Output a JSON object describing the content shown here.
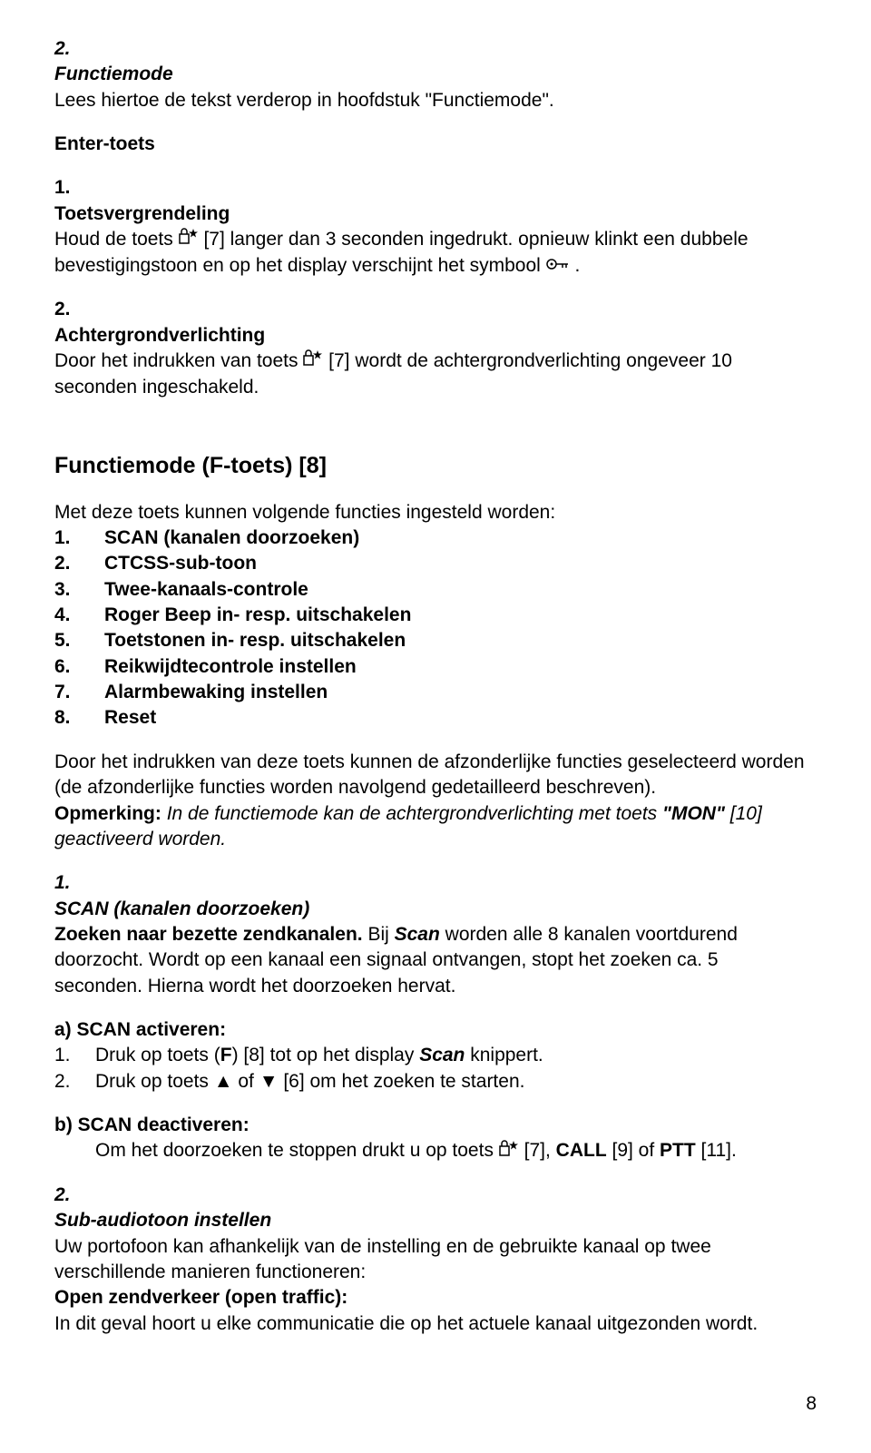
{
  "sec2": {
    "num": "2.",
    "title": "Functiemode",
    "line": "Lees hiertoe de tekst verderop in hoofdstuk \"Functiemode\"."
  },
  "enter_toets": "Enter-toets",
  "sec1a": {
    "num": "1.",
    "title": "Toetsvergrendeling",
    "line1a": "Houd de toets ",
    "line1b": " [7] langer dan 3 seconden ingedrukt. opnieuw klinkt een dubbele bevestigingstoon en op het display verschijnt het symbool ",
    "line1c": " ."
  },
  "sec2a": {
    "num": "2.",
    "title": "Achtergrondverlichting",
    "line_a": "Door het indrukken van toets ",
    "line_b": " [7] wordt de achtergrondverlichting ongeveer 10 seconden ingeschakeld."
  },
  "fmode_title": "Functiemode (F-toets) [8]",
  "fmode_intro": "Met deze toets kunnen volgende functies ingesteld worden:",
  "fmode_items": [
    {
      "n": "1.",
      "t": "SCAN (kanalen doorzoeken)"
    },
    {
      "n": "2.",
      "t": "CTCSS-sub-toon"
    },
    {
      "n": "3.",
      "t": "Twee-kanaals-controle"
    },
    {
      "n": "4.",
      "t": "Roger Beep in- resp. uitschakelen"
    },
    {
      "n": "5.",
      "t": "Toetstonen in- resp. uitschakelen"
    },
    {
      "n": "6.",
      "t": "Reikwijdtecontrole instellen"
    },
    {
      "n": "7.",
      "t": "Alarmbewaking instellen"
    },
    {
      "n": "8.",
      "t": "Reset"
    }
  ],
  "fmode_para": "Door het indrukken van deze toets kunnen de afzonderlijke functies geselecteerd worden (de afzonderlijke functies worden navolgend gedetailleerd beschreven).",
  "opm_label": "Opmerking:",
  "opm_a": " In de functiemode kan de achtergrondverlichting met toets ",
  "opm_b": "\"MON\"",
  "opm_c": " [10] geactiveerd worden.",
  "scan": {
    "num": "1.",
    "title": "SCAN (kanalen doorzoeken)",
    "l1a": "Zoeken naar bezette zendkanalen.",
    "l1b": " Bij ",
    "l1c": "Scan",
    "l1d": " worden alle 8 kanalen voortdurend doorzocht. Wordt op een kanaal een signaal ontvangen, stopt het zoeken ca. 5 seconden. Hierna wordt het doorzoeken hervat.",
    "a_label": "a)  SCAN activeren:",
    "a1_n": "1.",
    "a1_a": "Druk op toets (",
    "a1_b": "F",
    "a1_c": ") [8] tot op het display ",
    "a1_d": "Scan",
    "a1_e": " knippert.",
    "a2_n": "2.",
    "a2_t": "Druk op toets ▲ of ▼ [6] om het zoeken te starten.",
    "b_label": "b)  SCAN deactiveren:",
    "b_a": "Om het doorzoeken te stoppen drukt u op toets ",
    "b_b": " [7], ",
    "b_c": "CALL",
    "b_d": " [9] of ",
    "b_e": "PTT",
    "b_f": " [11]."
  },
  "sub": {
    "num": "2.",
    "title": "Sub-audiotoon instellen",
    "l1": "Uw portofoon kan afhankelijk van de instelling en de gebruikte kanaal op twee verschillende manieren functioneren:",
    "l2": "Open zendverkeer (open traffic):",
    "l3": "In dit geval hoort u elke communicatie die op het actuele kanaal uitgezonden wordt."
  },
  "page_number": "8",
  "icons": {
    "lock_star": "lock-star-icon",
    "key": "key-icon"
  }
}
